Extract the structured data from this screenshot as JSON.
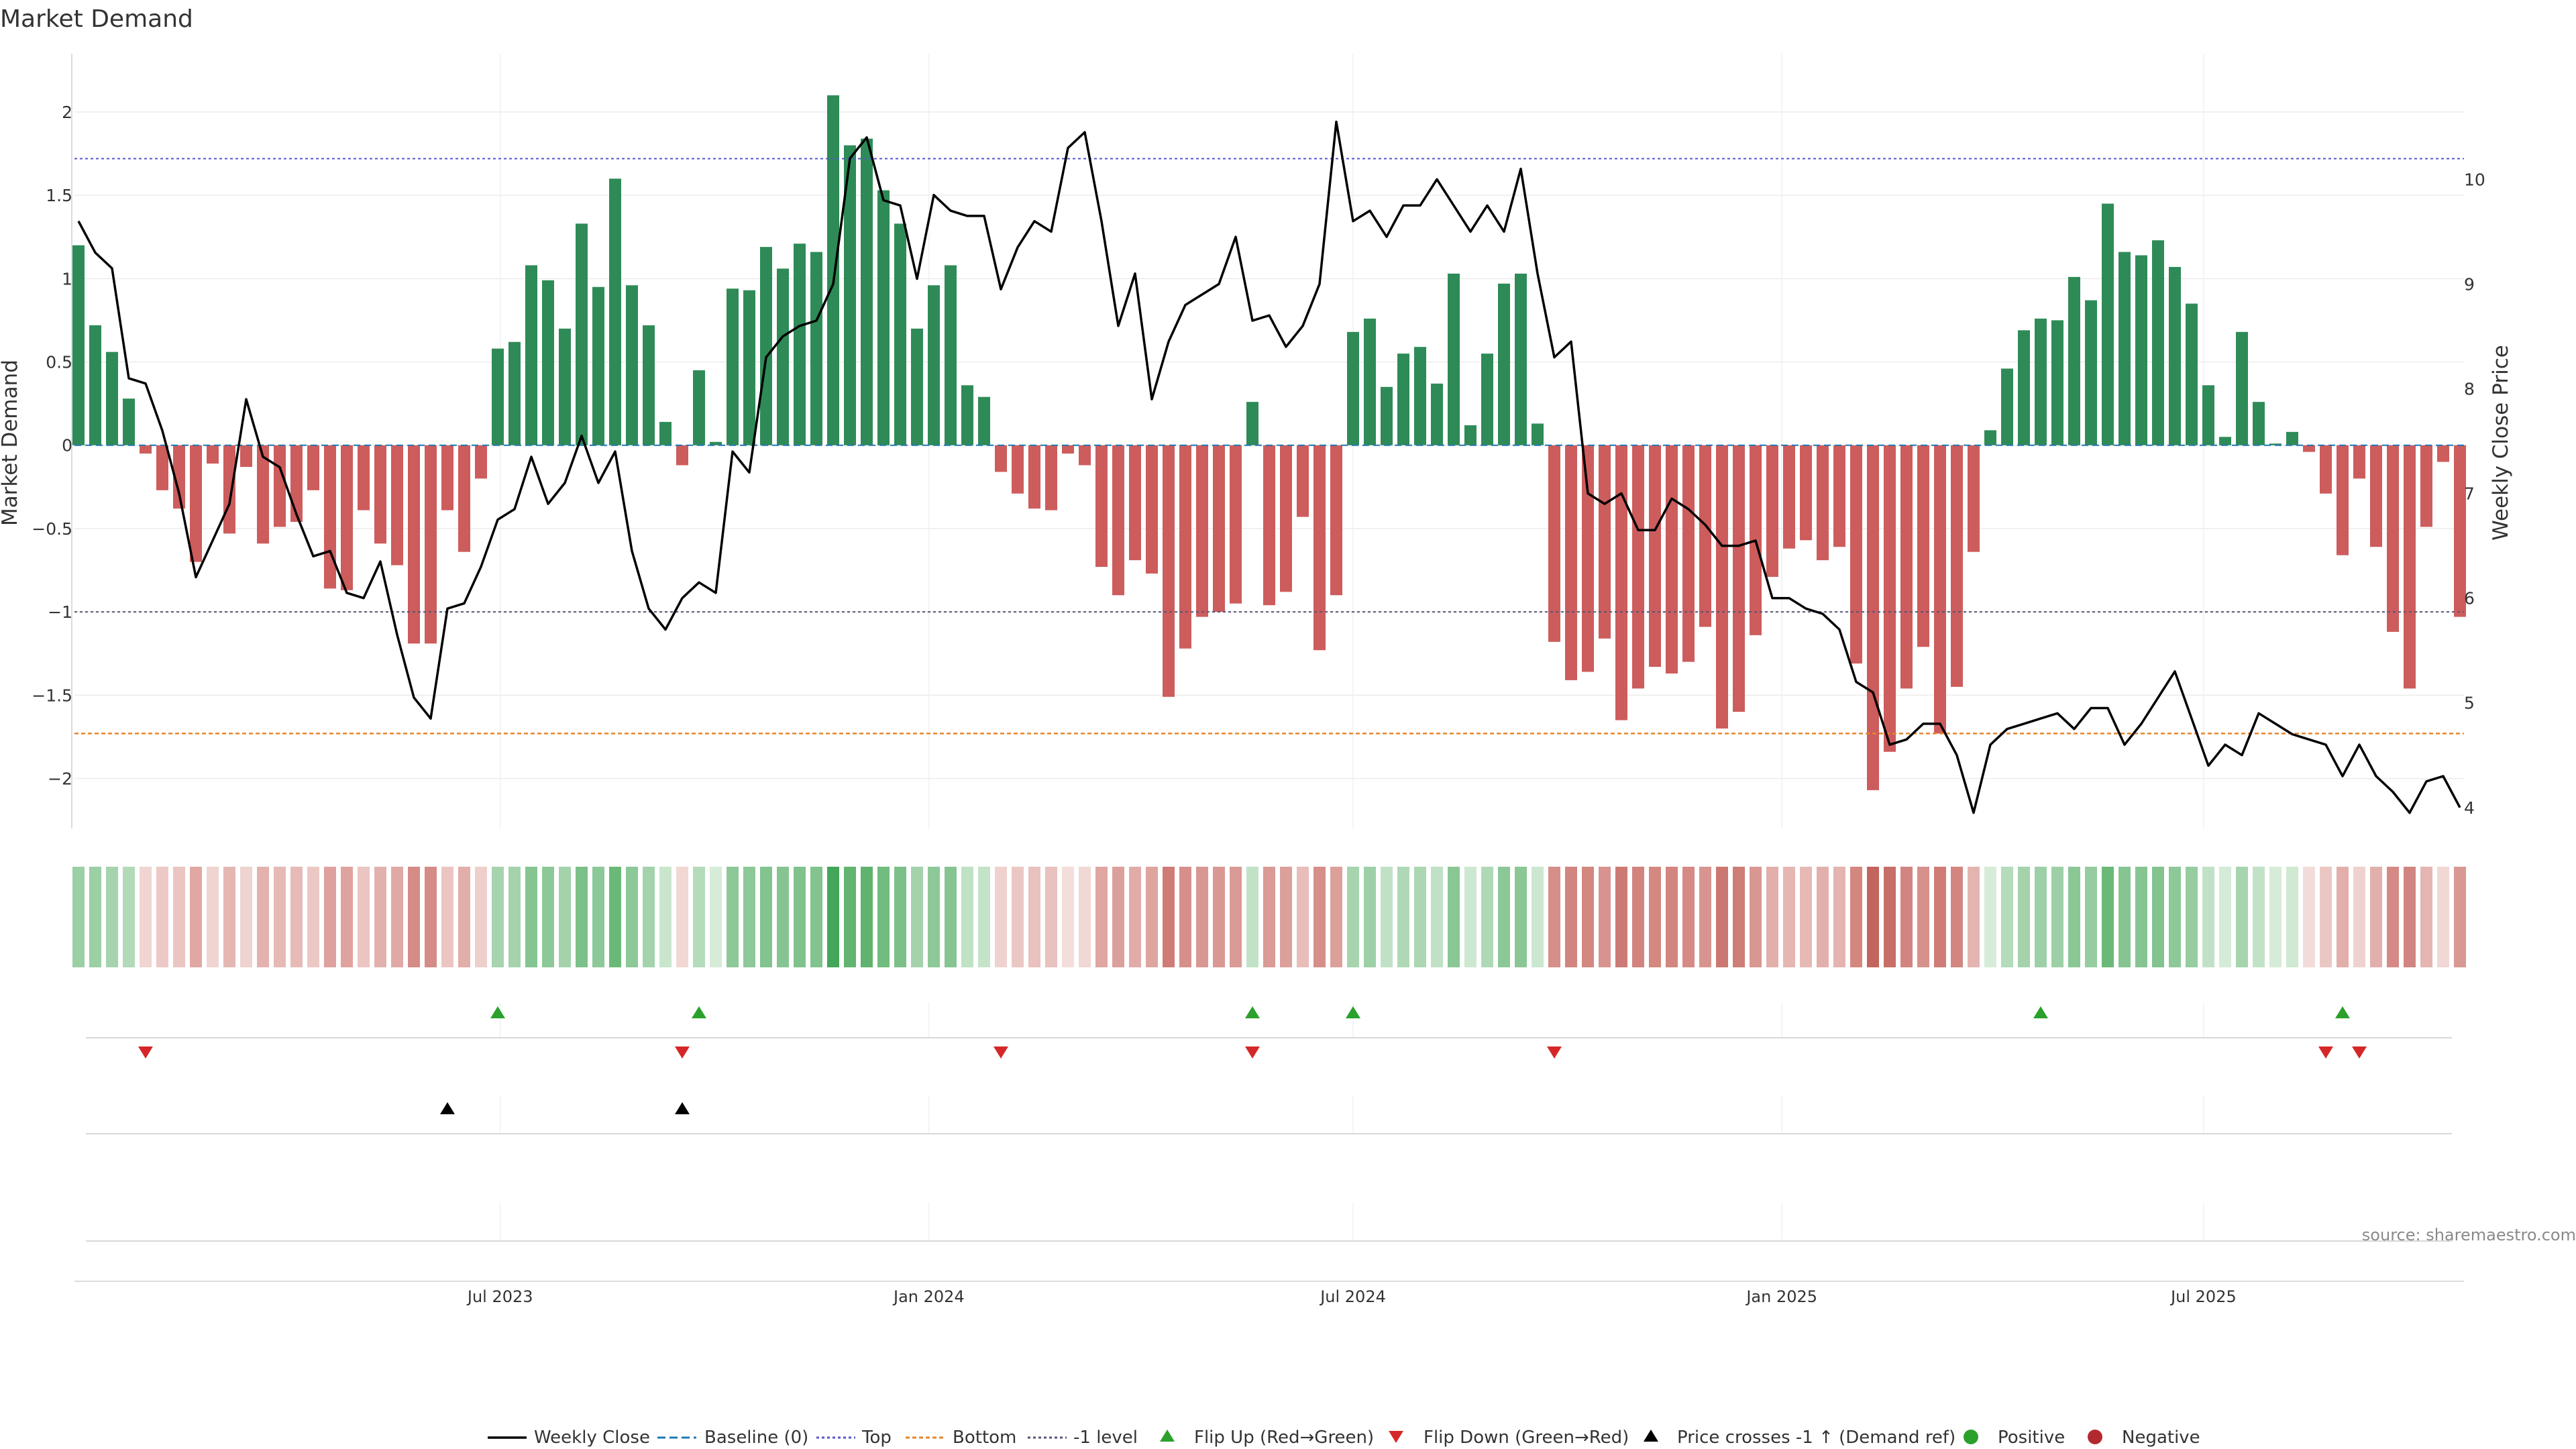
{
  "chart_data": {
    "type": "bar",
    "title": "Market Demand",
    "ylabel": "Market Demand",
    "y2label": "Weekly Close Price",
    "ylim": [
      -2.3,
      2.35
    ],
    "y2lim": [
      3.8,
      11.2
    ],
    "yticks": [
      2,
      1.5,
      1,
      0.5,
      0,
      -0.5,
      -1,
      -1.5,
      -2
    ],
    "ytick_labels": [
      "2",
      "1.5",
      "1",
      "0.5",
      "0",
      "−0.5",
      "−1",
      "−1.5",
      "−2"
    ],
    "y2ticks": [
      10,
      9,
      8,
      7,
      6,
      5,
      4
    ],
    "x_start": "2023-01-01",
    "x_end": "2025-10-19",
    "x_ticks": [
      {
        "date": "2023-07-01",
        "label": "Jul 2023"
      },
      {
        "date": "2024-01-01",
        "label": "Jan 2024"
      },
      {
        "date": "2024-07-01",
        "label": "Jul 2024"
      },
      {
        "date": "2025-01-01",
        "label": "Jan 2025"
      },
      {
        "date": "2025-07-01",
        "label": "Jul 2025"
      }
    ],
    "reference_lines": {
      "top": 1.72,
      "bottom": -1.73,
      "minus_one": -1,
      "baseline": 0
    },
    "colors": {
      "positive": "#2e8b57",
      "negative": "#cd5c5c",
      "price": "#000000",
      "top": "#5555cc",
      "bottom": "#e6862b",
      "minus_one": "#555577",
      "baseline": "#1f77b4",
      "flip_up": "#2ca02c",
      "flip_down": "#d62728"
    },
    "demand": [
      1.2,
      0.72,
      0.56,
      0.28,
      -0.05,
      -0.27,
      -0.38,
      -0.7,
      -0.11,
      -0.53,
      -0.13,
      -0.59,
      -0.49,
      -0.46,
      -0.27,
      -0.86,
      -0.87,
      -0.39,
      -0.59,
      -0.72,
      -1.19,
      -1.19,
      -0.39,
      -0.64,
      -0.2,
      0.58,
      0.62,
      1.08,
      0.99,
      0.7,
      1.33,
      0.95,
      1.6,
      0.96,
      0.72,
      0.14,
      -0.12,
      0.45,
      0.02,
      0.94,
      0.93,
      1.19,
      1.06,
      1.21,
      1.16,
      2.1,
      1.8,
      1.84,
      1.53,
      1.33,
      0.7,
      0.96,
      1.08,
      0.36,
      0.29,
      -0.16,
      -0.29,
      -0.38,
      -0.39,
      -0.05,
      -0.12,
      -0.73,
      -0.9,
      -0.69,
      -0.77,
      -1.51,
      -1.22,
      -1.03,
      -1.0,
      -0.95,
      0.26,
      -0.96,
      -0.88,
      -0.43,
      -1.23,
      -0.9,
      0.68,
      0.76,
      0.35,
      0.55,
      0.59,
      0.37,
      1.03,
      0.12,
      0.55,
      0.97,
      1.03,
      0.13,
      -1.18,
      -1.41,
      -1.36,
      -1.16,
      -1.65,
      -1.46,
      -1.33,
      -1.37,
      -1.3,
      -1.09,
      -1.7,
      -1.6,
      -1.14,
      -0.79,
      -0.62,
      -0.57,
      -0.69,
      -0.61,
      -1.31,
      -2.07,
      -1.84,
      -1.46,
      -1.21,
      -1.73,
      -1.45,
      -0.64,
      0.09,
      0.46,
      0.69,
      0.76,
      0.75,
      1.01,
      0.87,
      1.45,
      1.16,
      1.14,
      1.23,
      1.07,
      0.85,
      0.36,
      0.05,
      0.68,
      0.26,
      0.01,
      0.08,
      -0.04,
      -0.29,
      -0.66,
      -0.2,
      -0.61,
      -1.12,
      -1.46,
      -0.49,
      -0.1,
      -1.03
    ],
    "price": [
      9.6,
      9.3,
      9.15,
      8.1,
      8.05,
      7.6,
      7.0,
      6.2,
      6.55,
      6.9,
      7.9,
      7.35,
      7.25,
      6.8,
      6.4,
      6.45,
      6.05,
      6.0,
      6.35,
      5.65,
      5.05,
      4.85,
      5.9,
      5.95,
      6.3,
      6.75,
      6.85,
      7.35,
      6.9,
      7.1,
      7.55,
      7.1,
      7.4,
      6.45,
      5.9,
      5.7,
      6.0,
      6.15,
      6.05,
      7.4,
      7.2,
      8.3,
      8.5,
      8.6,
      8.65,
      9.0,
      10.2,
      10.4,
      9.8,
      9.75,
      9.05,
      9.85,
      9.7,
      9.65,
      9.65,
      8.95,
      9.35,
      9.6,
      9.5,
      10.3,
      10.45,
      9.6,
      8.6,
      9.1,
      7.9,
      8.45,
      8.8,
      8.9,
      9.0,
      9.45,
      8.65,
      8.7,
      8.4,
      8.6,
      9.0,
      10.55,
      9.6,
      9.7,
      9.45,
      9.75,
      9.75,
      10.0,
      9.75,
      9.5,
      9.75,
      9.5,
      10.1,
      9.1,
      8.3,
      8.45,
      7.0,
      6.9,
      7.0,
      6.65,
      6.65,
      6.95,
      6.85,
      6.7,
      6.5,
      6.5,
      6.55,
      6.0,
      6.0,
      5.9,
      5.85,
      5.7,
      5.2,
      5.1,
      4.6,
      4.65,
      4.8,
      4.8,
      4.5,
      3.95,
      4.6,
      4.75,
      4.8,
      4.85,
      4.9,
      4.75,
      4.95,
      4.95,
      4.6,
      4.8,
      5.05,
      5.3,
      4.85,
      4.4,
      4.6,
      4.5,
      4.9,
      4.8,
      4.7,
      4.65,
      4.6,
      4.3,
      4.6,
      4.3,
      4.15,
      3.95,
      4.25,
      4.3,
      4.0
    ],
    "flip_up_idx": [
      25,
      37,
      70,
      76,
      117,
      135
    ],
    "flip_down_idx": [
      4,
      36,
      55,
      70,
      88,
      134,
      136
    ],
    "price_cross_idx": [
      22,
      36
    ],
    "strip_colors": [
      "#9bcfa4",
      "#9bcfa4",
      "#a5d3ad",
      "#b2dab8",
      "#f0d5d3",
      "#ecc9c6",
      "#ebc5c2",
      "#e0a7a3",
      "#f0d4d1",
      "#e5b7b3",
      "#efd3d0",
      "#e3b2ae",
      "#e6b9b5",
      "#e6bab6",
      "#ecc8c5",
      "#dea19d",
      "#dfa29e",
      "#ebc5c2",
      "#e3b1ad",
      "#e0a9a5",
      "#d58b86",
      "#d58b86",
      "#ebc5c2",
      "#e2aeaa",
      "#eecfcc",
      "#a6d4ae",
      "#a3d2ab",
      "#86c592",
      "#8dc898",
      "#a3d2ab",
      "#7bc088",
      "#8dc898",
      "#6bb979",
      "#8dc898",
      "#a3d2ab",
      "#c9e6cd",
      "#f1d8d5",
      "#b4dbba",
      "#d6ecd9",
      "#8dc898",
      "#8dc898",
      "#82c38e",
      "#86c592",
      "#80c28c",
      "#82c38e",
      "#44a659",
      "#62b571",
      "#5fb36f",
      "#72bc80",
      "#7bc088",
      "#a3d2ab",
      "#8dc898",
      "#86c592",
      "#bfe1c4",
      "#c4e3c9",
      "#efd2cf",
      "#ebc7c4",
      "#e9c1be",
      "#e9c1be",
      "#f3dedb",
      "#f1d8d5",
      "#dfa6a2",
      "#dba09b",
      "#e1aca8",
      "#dea59f",
      "#cf7c76",
      "#d68f8a",
      "#d99792",
      "#d99893",
      "#da9a95",
      "#c2e2c7",
      "#da9a95",
      "#dca09b",
      "#e8bdba",
      "#d68e89",
      "#dca09b",
      "#a6d4ae",
      "#9ed0a7",
      "#c1e1c6",
      "#afd9b6",
      "#acd7b3",
      "#c0e1c5",
      "#8ac795",
      "#cde8d1",
      "#afd9b6",
      "#8cc897",
      "#8ac795",
      "#cce7d0",
      "#d68e89",
      "#d28580",
      "#d3877f",
      "#d89390",
      "#cd7a75",
      "#d2837e",
      "#d4887f",
      "#d3867f",
      "#d58a85",
      "#d89590",
      "#cc7771",
      "#ce7d77",
      "#d99792",
      "#e2afab",
      "#e5b6b2",
      "#e6b9b5",
      "#e2b0ac",
      "#e4b4b0",
      "#d4877f",
      "#c4645e",
      "#c86e68",
      "#d28580",
      "#d7918c",
      "#cf7c76",
      "#d3867f",
      "#e4b4b0",
      "#d6ecd9",
      "#b4dbba",
      "#a3d2ab",
      "#9ed0a7",
      "#9ed0a7",
      "#8ac795",
      "#96cca0",
      "#6bb979",
      "#86c592",
      "#86c592",
      "#82c38e",
      "#8dc898",
      "#96cca0",
      "#c1e1c6",
      "#d3ebd7",
      "#a6d4ae",
      "#c2e2c7",
      "#d6ecd9",
      "#cfe9d3",
      "#f2dcd9",
      "#ebc7c4",
      "#e2afab",
      "#efd2cf",
      "#e2b0ac",
      "#d58a85",
      "#d28580",
      "#e5b5b1",
      "#f1d8d5",
      "#d99893"
    ],
    "legend": [
      {
        "key": "weekly_close",
        "label": "Weekly Close"
      },
      {
        "key": "baseline",
        "label": "Baseline (0)"
      },
      {
        "key": "top",
        "label": "Top"
      },
      {
        "key": "bottom",
        "label": "Bottom"
      },
      {
        "key": "minus_one",
        "label": "-1 level"
      },
      {
        "key": "flip_up",
        "label": "Flip Up (Red→Green)"
      },
      {
        "key": "flip_down",
        "label": "Flip Down (Green→Red)"
      },
      {
        "key": "price_cross",
        "label": "Price crosses -1 ↑ (Demand ref)"
      },
      {
        "key": "positive",
        "label": "Positive"
      },
      {
        "key": "negative",
        "label": "Negative"
      }
    ],
    "source": "source: sharemaestro.com"
  }
}
